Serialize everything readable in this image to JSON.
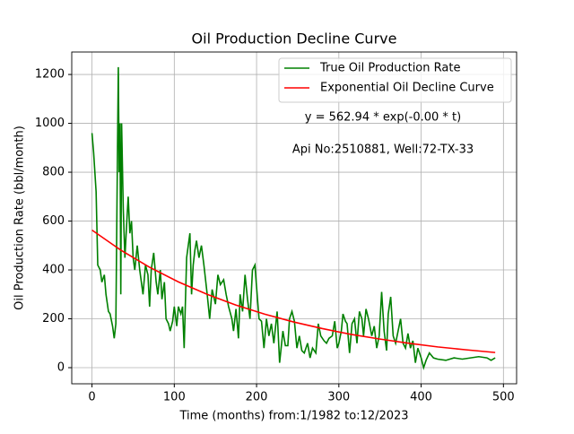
{
  "chart_data": {
    "type": "line",
    "title": "Oil Production Decline Curve",
    "xlabel": "Time (months) from:1/1982 to:12/2023",
    "ylabel": "Oil Production Rate (bbl/month)",
    "annotations": [
      "y = 562.94 * exp(-0.00 * t)",
      "Api No:2510881, Well:72-TX-33"
    ],
    "xlim": [
      -24.6,
      516
    ],
    "ylim": [
      -66,
      1292
    ],
    "xticks": [
      0,
      100,
      200,
      300,
      400,
      500
    ],
    "yticks": [
      0,
      200,
      400,
      600,
      800,
      1000,
      1200
    ],
    "grid": true,
    "legend": "upper right",
    "series": [
      {
        "name": "True Oil Production Rate",
        "color": "#008000",
        "x": [
          0,
          2,
          5,
          7,
          10,
          12,
          15,
          17,
          20,
          22,
          25,
          27,
          29,
          31,
          32,
          33,
          34,
          35,
          36,
          38,
          40,
          42,
          44,
          46,
          48,
          50,
          52,
          55,
          58,
          60,
          62,
          65,
          68,
          70,
          72,
          75,
          78,
          80,
          83,
          85,
          88,
          90,
          93,
          95,
          98,
          100,
          103,
          105,
          108,
          110,
          112,
          115,
          117,
          119,
          121,
          123,
          125,
          127,
          130,
          133,
          136,
          140,
          143,
          146,
          150,
          153,
          156,
          160,
          163,
          166,
          170,
          172,
          175,
          178,
          180,
          183,
          186,
          189,
          192,
          195,
          198,
          200,
          203,
          206,
          209,
          212,
          215,
          218,
          221,
          225,
          228,
          232,
          235,
          238,
          240,
          243,
          246,
          249,
          252,
          255,
          258,
          262,
          265,
          268,
          272,
          275,
          278,
          282,
          285,
          288,
          292,
          295,
          298,
          300,
          303,
          305,
          308,
          310,
          313,
          316,
          319,
          322,
          325,
          328,
          330,
          333,
          336,
          340,
          343,
          346,
          349,
          352,
          355,
          358,
          360,
          363,
          366,
          369,
          372,
          375,
          378,
          381,
          384,
          387,
          390,
          393,
          396,
          400,
          403,
          406,
          410,
          415,
          420,
          430,
          440,
          450,
          460,
          470,
          480,
          485,
          490
        ],
        "values": [
          960,
          880,
          720,
          420,
          400,
          350,
          380,
          300,
          230,
          220,
          170,
          120,
          180,
          900,
          1230,
          800,
          1000,
          300,
          1000,
          650,
          450,
          580,
          700,
          550,
          600,
          450,
          400,
          500,
          400,
          350,
          300,
          420,
          380,
          250,
          400,
          470,
          350,
          300,
          400,
          280,
          350,
          200,
          180,
          150,
          190,
          250,
          170,
          250,
          220,
          250,
          80,
          450,
          500,
          550,
          300,
          420,
          480,
          520,
          450,
          500,
          420,
          300,
          200,
          320,
          260,
          380,
          340,
          360,
          300,
          250,
          200,
          150,
          240,
          120,
          300,
          230,
          380,
          280,
          200,
          400,
          420,
          330,
          200,
          190,
          80,
          200,
          130,
          180,
          100,
          230,
          20,
          150,
          90,
          90,
          200,
          230,
          190,
          80,
          130,
          70,
          60,
          100,
          40,
          80,
          60,
          180,
          130,
          110,
          100,
          120,
          130,
          190,
          80,
          100,
          150,
          220,
          190,
          180,
          60,
          180,
          200,
          100,
          230,
          200,
          130,
          240,
          200,
          130,
          170,
          80,
          130,
          310,
          150,
          70,
          220,
          290,
          130,
          100,
          150,
          200,
          100,
          80,
          140,
          80,
          110,
          20,
          80,
          40,
          0,
          30,
          60,
          40,
          35,
          30,
          40,
          35,
          40,
          45,
          40,
          30,
          40
        ]
      },
      {
        "name": "Exponential Oil Decline Curve",
        "color": "#ff0000",
        "x": [
          0,
          35,
          70,
          105,
          140,
          175,
          210,
          245,
          280,
          315,
          350,
          385,
          420,
          455,
          490
        ],
        "values": [
          563,
          481,
          411,
          351,
          300,
          256,
          219,
          187,
          160,
          136,
          117,
          100,
          85,
          73,
          62
        ]
      }
    ]
  }
}
